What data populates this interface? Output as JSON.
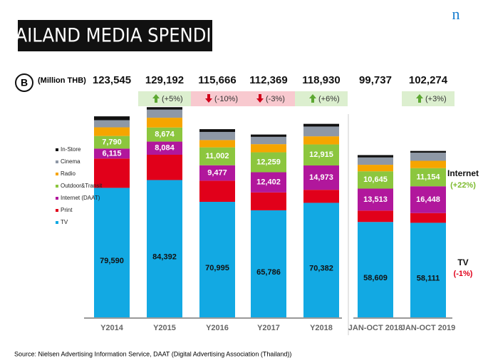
{
  "chart_data": {
    "type": "stacked_bar",
    "title": "THAILAND MEDIA SPENDING",
    "unit_label": "(Million THB)",
    "badge": "B",
    "logo": "n",
    "source": "Source: Nielsen Advertising Information Service, DAAT (Digital Advertising Association (Thailand))",
    "categories": [
      "Y2014",
      "Y2015",
      "Y2016",
      "Y2017",
      "Y2018",
      "JAN-OCT 2018",
      "JAN-OCT 2019"
    ],
    "ylim": [
      0,
      135000
    ],
    "totals": {
      "values": [
        123545,
        129192,
        115666,
        112369,
        118930,
        99737,
        102274
      ],
      "value_labels": [
        "123,545",
        "129,192",
        "115,666",
        "112,369",
        "118,930",
        "99,737",
        "102,274"
      ]
    },
    "changes": [
      null,
      "(+5%)",
      "(-10%)",
      "(-3%)",
      "(+6%)",
      null,
      "(+3%)"
    ],
    "change_direction": [
      null,
      "up",
      "down",
      "down",
      "up",
      null,
      "up"
    ],
    "series": [
      {
        "name": "TV",
        "color": "#12a9e3",
        "values": [
          79590,
          84392,
          70995,
          65786,
          70382,
          58609,
          58111
        ],
        "value_labels": [
          "79,590",
          "84,392",
          "70,995",
          "65,786",
          "70,382",
          "58,609",
          "58,111"
        ]
      },
      {
        "name": "Print",
        "color": "#e1001a",
        "values": [
          18000,
          15542,
          13000,
          11000,
          8000,
          7000,
          6000
        ]
      },
      {
        "name": "Internet (DAAT)",
        "color": "#b1179c",
        "values": [
          6115,
          8084,
          9477,
          12402,
          14973,
          13513,
          16448
        ],
        "value_labels": [
          "6,115",
          "8,084",
          "9,477",
          "12,402",
          "14,973",
          "13,513",
          "16,448"
        ]
      },
      {
        "name": "Outdoor&Transit",
        "color": "#8cc63e",
        "values": [
          7790,
          8674,
          11002,
          12259,
          12915,
          10645,
          11154
        ],
        "value_labels": [
          "7,790",
          "8,674",
          "11,002",
          "12,259",
          "12,915",
          "10,645",
          "11,154"
        ]
      },
      {
        "name": "Radio",
        "color": "#f6a500",
        "values": [
          5300,
          6000,
          4500,
          5000,
          5000,
          4000,
          4500
        ]
      },
      {
        "name": "Cinema",
        "color": "#8e98a6",
        "values": [
          4400,
          5000,
          5000,
          4500,
          6000,
          4500,
          5000
        ]
      },
      {
        "name": "In-Store",
        "color": "#111111",
        "values": [
          2350,
          1500,
          1692,
          1422,
          1660,
          1470,
          1061
        ]
      }
    ],
    "annotations": [
      {
        "text": "Internet",
        "color": "#111111"
      },
      {
        "text": "(+22%)",
        "color": "#7dbb2e"
      },
      {
        "text": "TV",
        "color": "#111111"
      },
      {
        "text": "(-1%)",
        "color": "#e1001a"
      }
    ]
  }
}
